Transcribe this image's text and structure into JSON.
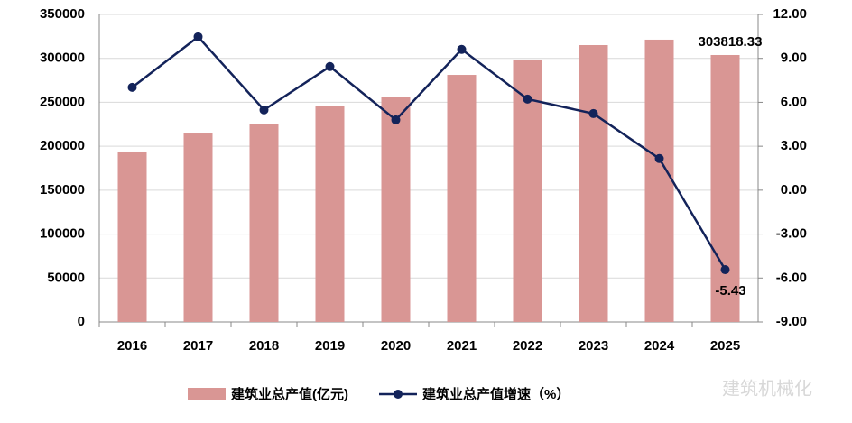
{
  "chart_data": {
    "type": "bar-line",
    "categories": [
      "2016",
      "2017",
      "2018",
      "2019",
      "2020",
      "2021",
      "2022",
      "2023",
      "2024",
      "2025"
    ],
    "series": [
      {
        "name": "建筑业总产值(亿元)",
        "type": "bar",
        "color": "#d99694",
        "values": [
          194000,
          214500,
          225800,
          245300,
          256600,
          281200,
          298700,
          315100,
          321300,
          303818.33
        ],
        "value_labels": [
          null,
          null,
          null,
          null,
          null,
          null,
          null,
          null,
          null,
          "303818.33"
        ]
      },
      {
        "name": "建筑业总产值增速（%）",
        "type": "line",
        "axis": "y2",
        "color": "#13235a",
        "values": [
          7.02,
          10.47,
          5.48,
          8.44,
          4.8,
          9.61,
          6.22,
          5.23,
          2.16,
          -5.43
        ],
        "value_labels": [
          null,
          null,
          null,
          null,
          null,
          null,
          null,
          null,
          null,
          "-5.43"
        ]
      }
    ],
    "ylim": [
      0,
      350000
    ],
    "yticks": [
      0,
      50000,
      100000,
      150000,
      200000,
      250000,
      300000,
      350000
    ],
    "y2lim": [
      -9,
      12
    ],
    "y2ticks": [
      {
        "value": -9,
        "label": "-9.00"
      },
      {
        "value": -6,
        "label": "-6.00"
      },
      {
        "value": -3,
        "label": "-3.00"
      },
      {
        "value": 0,
        "label": "0.00"
      },
      {
        "value": 3,
        "label": "3.00"
      },
      {
        "value": 6,
        "label": "6.00"
      },
      {
        "value": 9,
        "label": "9.00"
      },
      {
        "value": 12,
        "label": "12.00"
      }
    ],
    "grid": true,
    "legend": "bottom",
    "watermark": "建筑机械化"
  }
}
